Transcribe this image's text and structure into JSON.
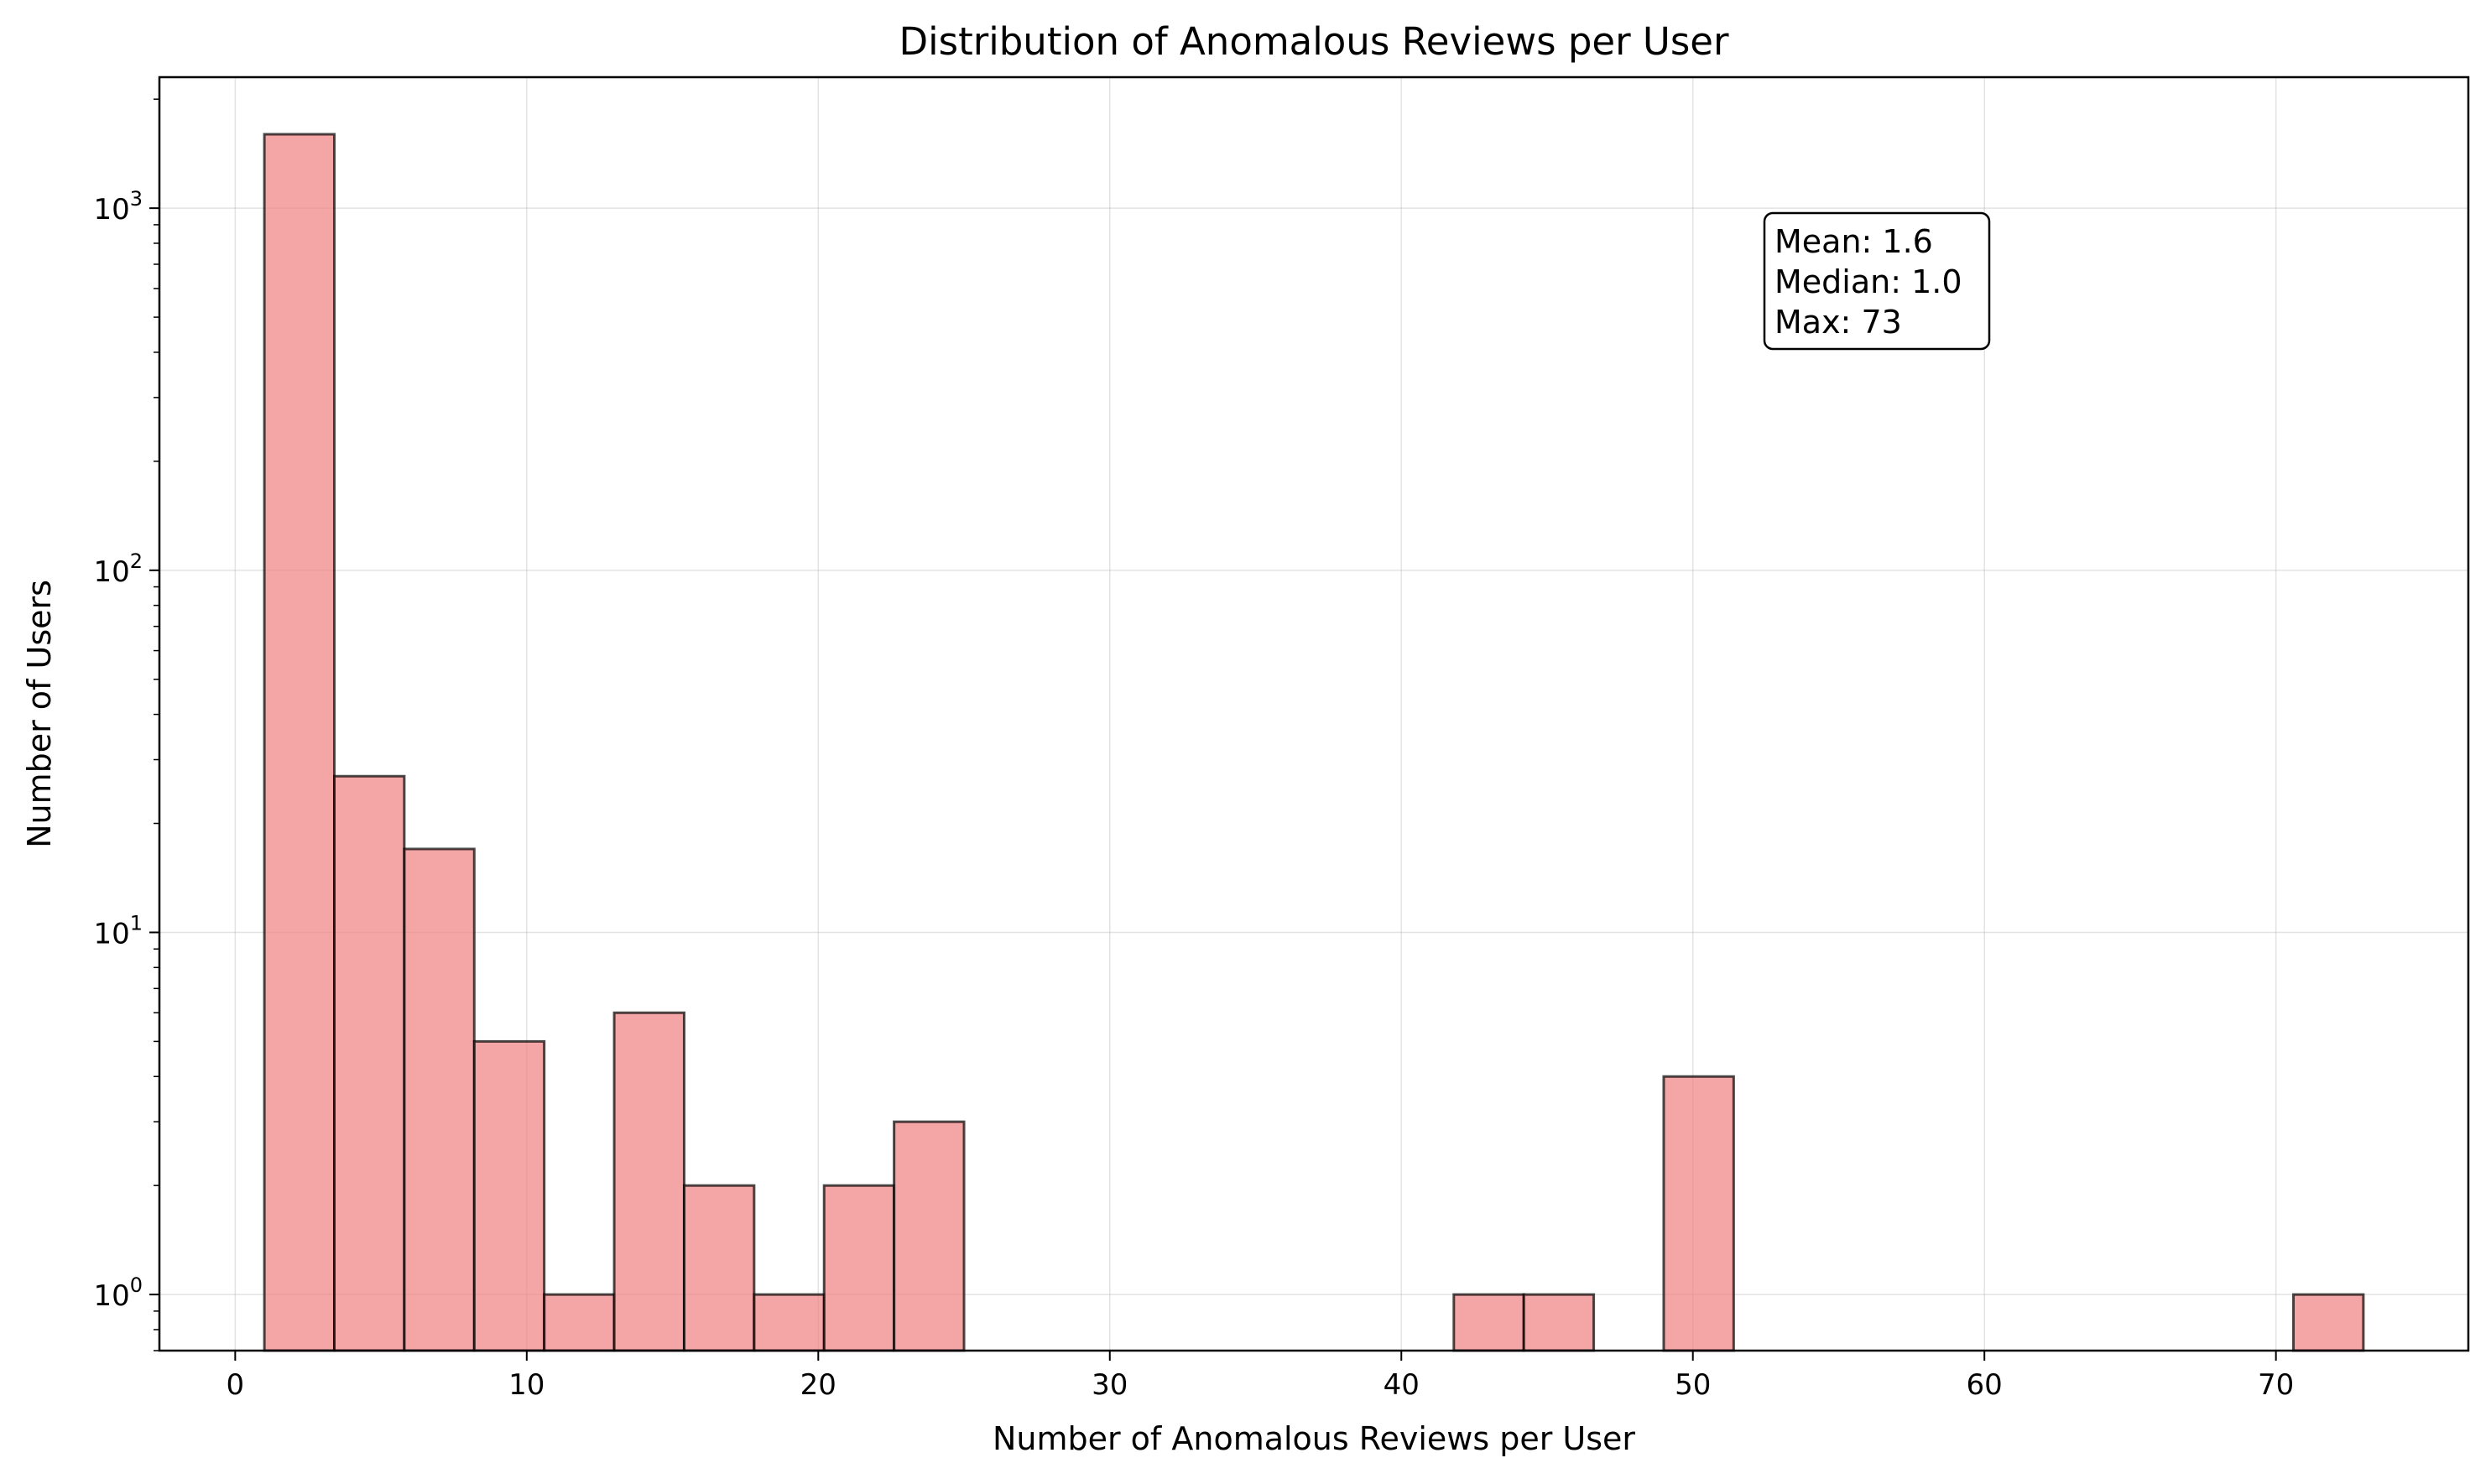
{
  "chart_data": {
    "type": "bar",
    "title": "Distribution of Anomalous Reviews per User",
    "xlabel": "Number of Anomalous Reviews per User",
    "ylabel": "Number of Users",
    "yscale": "log",
    "xlim": [
      -2.6,
      76.6
    ],
    "ylim": [
      0.7,
      2300
    ],
    "xticks": [
      0,
      10,
      20,
      30,
      40,
      50,
      60,
      70
    ],
    "yticks": [
      1,
      10,
      100,
      1000
    ],
    "ytick_labels": [
      {
        "base": "10",
        "exp": "0"
      },
      {
        "base": "10",
        "exp": "1"
      },
      {
        "base": "10",
        "exp": "2"
      },
      {
        "base": "10",
        "exp": "3"
      }
    ],
    "grid": true,
    "bar_color": "#f08080",
    "bar_edge_color": "#000000",
    "bin_start": 1,
    "bin_end": 73,
    "bin_count": 30,
    "values": [
      1600,
      27,
      17,
      5,
      1,
      6,
      2,
      1,
      2,
      3,
      0,
      0,
      0,
      0,
      0,
      0,
      0,
      1,
      1,
      0,
      4,
      0,
      0,
      0,
      0,
      0,
      0,
      0,
      0,
      1
    ],
    "stats_box": {
      "lines": [
        "Mean: 1.6",
        "Median: 1.0",
        "Max: 73"
      ],
      "position": "upper-right"
    }
  }
}
